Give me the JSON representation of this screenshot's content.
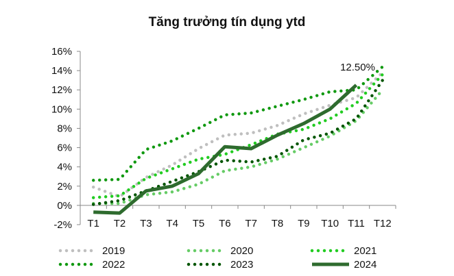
{
  "chart_data": {
    "type": "line",
    "title": "Tăng trưởng tín dụng ytd",
    "xlabel": "",
    "ylabel": "",
    "categories": [
      "T1",
      "T2",
      "T3",
      "T4",
      "T5",
      "T6",
      "T7",
      "T8",
      "T9",
      "T10",
      "T11",
      "T12"
    ],
    "ylim": [
      -2,
      16
    ],
    "yticks": [
      -2,
      0,
      2,
      4,
      6,
      8,
      10,
      12,
      14,
      16
    ],
    "ytick_labels": [
      "-2%",
      "0%",
      "2%",
      "4%",
      "6%",
      "8%",
      "10%",
      "12%",
      "14%",
      "16%"
    ],
    "grid": false,
    "legend_position": "bottom",
    "annotation": {
      "text": "12.50%",
      "series": "2024",
      "x": "T11",
      "y": 12.5
    },
    "series": [
      {
        "name": "2019",
        "color": "#bfbfbf",
        "style": "dotted",
        "values": [
          1.9,
          0.9,
          2.9,
          4.2,
          5.9,
          7.3,
          7.5,
          8.3,
          9.5,
          10.4,
          11.2,
          13.8
        ]
      },
      {
        "name": "2020",
        "color": "#66cc66",
        "style": "dotted",
        "values": [
          0.2,
          0.2,
          1.1,
          1.4,
          2.2,
          3.6,
          4.0,
          4.8,
          6.0,
          7.2,
          8.8,
          12.0
        ]
      },
      {
        "name": "2021",
        "color": "#22cc22",
        "style": "dotted",
        "values": [
          0.8,
          1.0,
          2.8,
          3.8,
          4.8,
          5.3,
          6.3,
          7.4,
          7.9,
          9.0,
          10.6,
          13.6
        ]
      },
      {
        "name": "2022",
        "color": "#119911",
        "style": "dotted",
        "values": [
          2.6,
          2.7,
          5.8,
          6.7,
          8.0,
          9.4,
          9.6,
          10.3,
          11.0,
          11.8,
          12.0,
          14.4
        ]
      },
      {
        "name": "2023",
        "color": "#005500",
        "style": "dotted",
        "values": [
          0.1,
          0.5,
          1.5,
          2.5,
          3.5,
          4.7,
          4.5,
          5.1,
          6.8,
          7.5,
          9.0,
          13.0
        ]
      },
      {
        "name": "2024",
        "color": "#2e6b2e",
        "style": "solid",
        "values": [
          -0.7,
          -0.8,
          1.5,
          2.0,
          3.3,
          6.1,
          5.9,
          7.3,
          8.5,
          10.0,
          12.5,
          null
        ]
      }
    ]
  }
}
